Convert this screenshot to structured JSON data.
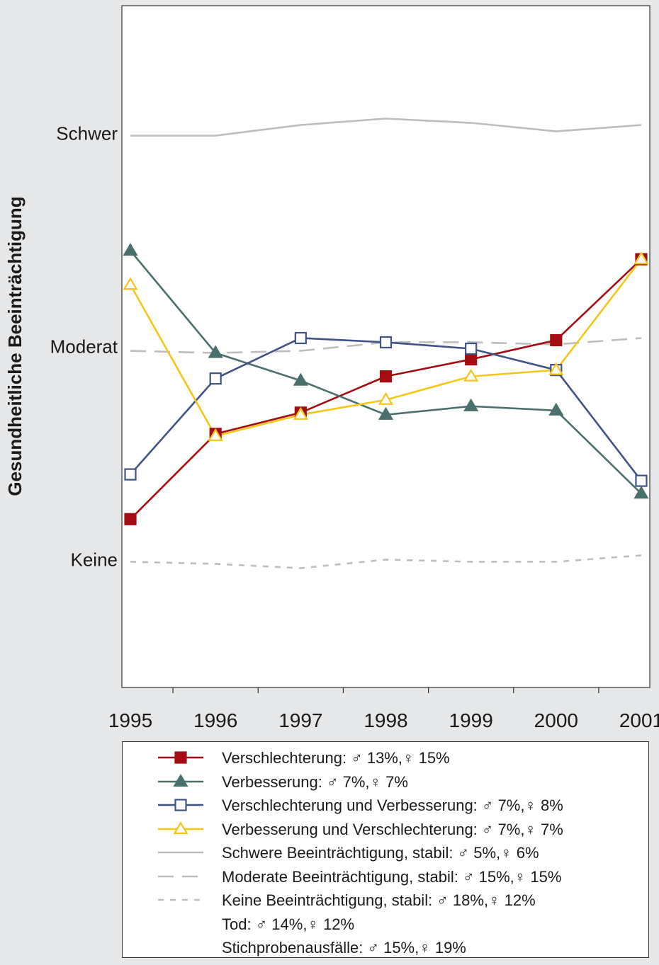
{
  "chart_data": {
    "type": "line",
    "ylabel": "Gesundheitliche Beeinträchtigung",
    "xlabel": "",
    "x": [
      1995,
      1996,
      1997,
      1998,
      1999,
      2000,
      2001
    ],
    "xlim": [
      1994.9,
      2001.1
    ],
    "y_ticks": [
      {
        "value": 0,
        "label": "Keine"
      },
      {
        "value": 1,
        "label": "Moderat"
      },
      {
        "value": 2,
        "label": "Schwer"
      }
    ],
    "ylim": [
      -0.6,
      2.6
    ],
    "grid": false,
    "legend_position": "bottom",
    "series": [
      {
        "name": "Verschlechterung: ♂ 13%,♀ 15%",
        "color": "#a30d12",
        "marker": "square-filled",
        "dash": "solid",
        "values": [
          0.19,
          0.59,
          0.69,
          0.86,
          0.94,
          1.03,
          1.41
        ]
      },
      {
        "name": "Verbesserung: ♂ 7%,♀ 7%",
        "color": "#4a706d",
        "marker": "triangle-filled",
        "dash": "solid",
        "values": [
          1.45,
          0.97,
          0.84,
          0.68,
          0.72,
          0.7,
          0.31
        ]
      },
      {
        "name": "Verschlechterung und Verbesserung: ♂ 7%,♀ 8%",
        "color": "#3f5386",
        "marker": "square-open",
        "dash": "solid",
        "values": [
          0.4,
          0.85,
          1.04,
          1.02,
          0.99,
          0.89,
          0.37
        ]
      },
      {
        "name": "Verbesserung und Verschlechterung: ♂ 7%,♀ 7%",
        "color": "#f5c518",
        "marker": "triangle-open",
        "dash": "solid",
        "values": [
          1.29,
          0.58,
          0.68,
          0.75,
          0.86,
          0.89,
          1.41
        ]
      },
      {
        "name": "Schwere Beeinträchtigung, stabil: ♂ 5%,♀ 6%",
        "color": "#bdbdbd",
        "marker": "none",
        "dash": "solid",
        "values": [
          1.99,
          1.99,
          2.04,
          2.07,
          2.05,
          2.01,
          2.04
        ]
      },
      {
        "name": "Moderate Beeinträchtigung, stabil: ♂ 15%,♀ 15%",
        "color": "#bdbdbd",
        "marker": "none",
        "dash": "long",
        "values": [
          0.98,
          0.97,
          0.98,
          1.02,
          1.02,
          1.01,
          1.04
        ]
      },
      {
        "name": "Keine Beeinträchtigung, stabil: ♂ 18%,♀ 12%",
        "color": "#bdbdbd",
        "marker": "none",
        "dash": "short",
        "values": [
          -0.01,
          -0.02,
          -0.04,
          0.0,
          -0.01,
          -0.01,
          0.02
        ]
      }
    ],
    "extra_legend_entries": [
      "Tod: ♂ 14%,♀ 12%",
      "Stichprobenausfälle: ♂ 15%,♀ 19%"
    ]
  }
}
